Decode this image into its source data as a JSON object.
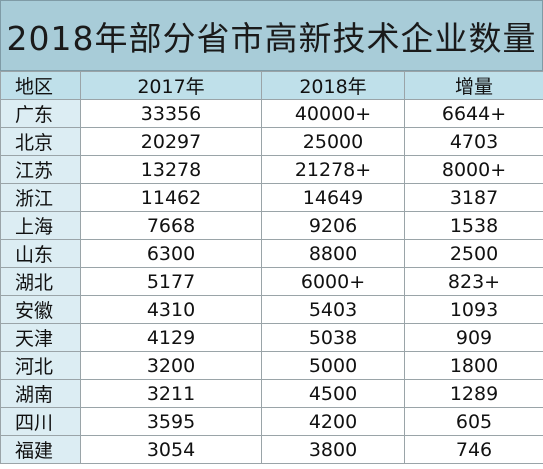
{
  "title": "2018年部分省市高新技术企业数量",
  "headers": [
    "地区",
    "2017年",
    "2018年",
    "增量"
  ],
  "rows": [
    [
      "广东",
      "33356",
      "40000+",
      "6644+"
    ],
    [
      "北京",
      "20297",
      "25000",
      "4703"
    ],
    [
      "江苏",
      "13278",
      "21278+",
      "8000+"
    ],
    [
      "浙江",
      "11462",
      "14649",
      "3187"
    ],
    [
      "上海",
      "7668",
      "9206",
      "1538"
    ],
    [
      "山东",
      "6300",
      "8800",
      "2500"
    ],
    [
      "湖北",
      "5177",
      "6000+",
      "823+"
    ],
    [
      "安徽",
      "4310",
      "5403",
      "1093"
    ],
    [
      "天津",
      "4129",
      "5038",
      "909"
    ],
    [
      "河北",
      "3200",
      "5000",
      "1800"
    ],
    [
      "湖南",
      "3211",
      "4500",
      "1289"
    ],
    [
      "四川",
      "3595",
      "4200",
      "605"
    ],
    [
      "福建",
      "3054",
      "3800",
      "746"
    ]
  ],
  "colors": {
    "title_background": "#a8ccd8",
    "header_background": "#bfe0ea",
    "region_background": "#dcedf3",
    "grid_line": "#9aa4a8"
  }
}
